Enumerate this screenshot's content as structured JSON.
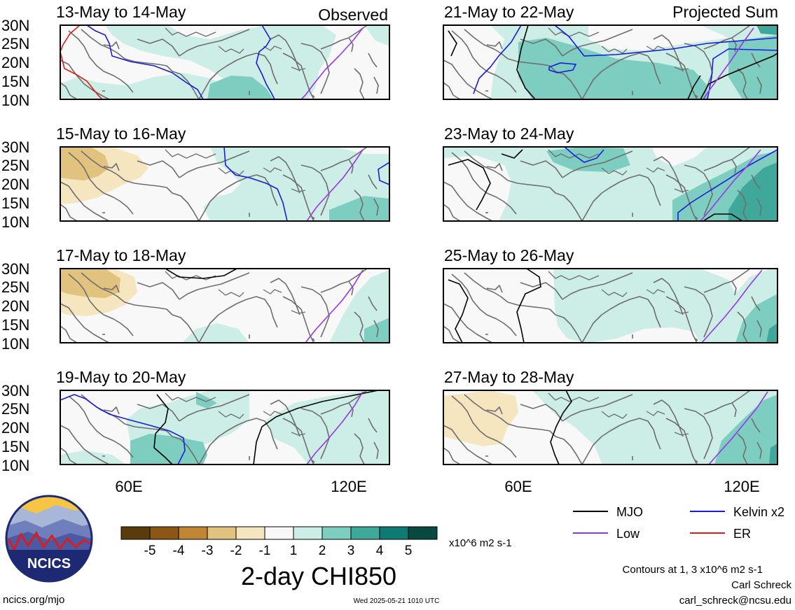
{
  "figure_title": "2-day CHI850",
  "panels": [
    {
      "column": "left",
      "row": 0,
      "period": "13-May to 14-May",
      "tag": "Observed",
      "top_lat_label": "30N"
    },
    {
      "column": "left",
      "row": 1,
      "period": "15-May to 16-May",
      "tag": "",
      "top_lat_label": "30N"
    },
    {
      "column": "left",
      "row": 2,
      "period": "17-May to 18-May",
      "tag": "",
      "top_lat_label": "30N"
    },
    {
      "column": "left",
      "row": 3,
      "period": "19-May to 20-May",
      "tag": "",
      "top_lat_label": "30N"
    },
    {
      "column": "right",
      "row": 0,
      "period": "21-May to 22-May",
      "tag": "Projected Sum",
      "top_lat_label": "30N"
    },
    {
      "column": "right",
      "row": 1,
      "period": "23-May to 24-May",
      "tag": "",
      "top_lat_label": "30N"
    },
    {
      "column": "right",
      "row": 2,
      "period": "25-May to 26-May",
      "tag": "",
      "top_lat_label": "30N"
    },
    {
      "column": "right",
      "row": 3,
      "period": "27-May to 28-May",
      "tag": "",
      "top_lat_label": "30N"
    }
  ],
  "lat_ticks": [
    "30N",
    "25N",
    "20N",
    "15N",
    "10N"
  ],
  "lon_ticks": [
    "60E",
    "120E"
  ],
  "colorbar": {
    "labels": [
      "-5",
      "-4",
      "-3",
      "-2",
      "-1",
      "1",
      "2",
      "3",
      "4",
      "5"
    ],
    "colors": [
      "#5a3b0d",
      "#8c5614",
      "#bf8636",
      "#e1c27f",
      "#f6e6c0",
      "#f8f8f8",
      "#cdeee6",
      "#7dcec0",
      "#3fa89b",
      "#0e7a72",
      "#084a40"
    ],
    "units": "x10^6 m2 s-1"
  },
  "legend": [
    {
      "label": "MJO",
      "color": "#000000"
    },
    {
      "label": "Kelvin x2",
      "color": "#1b1bdc"
    },
    {
      "label": "Low",
      "color": "#9a34e8"
    },
    {
      "label": "ER",
      "color": "#e11a1a"
    }
  ],
  "contour_note": "Contours at 1, 3 x10^6 m2 s-1",
  "author": "Carl Schreck",
  "email": "carl_schreck@ncsu.edu",
  "site": "ncics.org/mjo",
  "timestamp": "Wed 2025-05-21 1010 UTC",
  "logo_text": "NCICS"
}
